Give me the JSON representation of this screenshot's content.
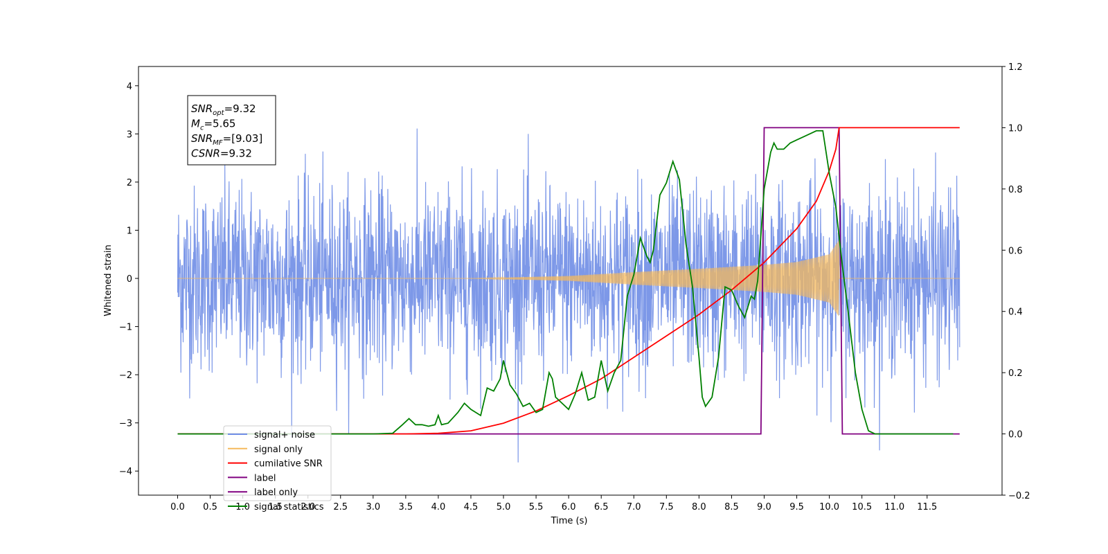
{
  "chart_data": {
    "type": "line",
    "xlabel": "Time (s)",
    "ylabel": "Whitened strain",
    "ylabel_right": "",
    "xlim": [
      -0.6,
      12.65
    ],
    "ylim_left": [
      -4.5,
      4.4
    ],
    "ylim_right": [
      -0.2,
      1.2
    ],
    "xticks": [
      "0.0",
      "0.5",
      "1.0",
      "1.5",
      "2.0",
      "2.5",
      "3.0",
      "3.5",
      "4.0",
      "4.5",
      "5.0",
      "5.5",
      "6.0",
      "6.5",
      "7.0",
      "7.5",
      "8.0",
      "8.5",
      "9.0",
      "9.5",
      "10.0",
      "10.5",
      "11.0",
      "11.5"
    ],
    "yticks_left": [
      "4",
      "3",
      "2",
      "1",
      "0",
      "−1",
      "−2",
      "−3",
      "−4"
    ],
    "yticks_right": [
      "1.2",
      "1.0",
      "0.8",
      "0.6",
      "0.4",
      "0.2",
      "0.0",
      "−0.2"
    ],
    "grid": false,
    "legend_position": "lower-left",
    "annotation": {
      "lines": [
        {
          "name": "SNR",
          "sub": "opt",
          "value": "=9.32"
        },
        {
          "name": "M",
          "sub": "c",
          "value": "=5.65"
        },
        {
          "name": "SNR",
          "sub": "MF",
          "value": "=[9.03]"
        },
        {
          "name": "CSNR",
          "sub": "",
          "value": "=9.32"
        }
      ]
    },
    "series": [
      {
        "name": "signal+ noise",
        "axis": "left",
        "color": "#6f8de6",
        "style": "dense noise, std ~0.95, spikes up to about 4.0 and down to about -4.1",
        "x_range": [
          0.0,
          12.0
        ]
      },
      {
        "name": "signal only",
        "axis": "left",
        "color": "#f5b95c",
        "style": "chirp, amplitude growing from 0 near t=4.5 to ~0.8 at t=10.15, zero afterwards",
        "amplitude_envelope": {
          "x": [
            4.5,
            6.0,
            7.0,
            8.0,
            9.0,
            9.5,
            10.0,
            10.15
          ],
          "y": [
            0.0,
            0.05,
            0.13,
            0.2,
            0.28,
            0.34,
            0.5,
            0.8
          ]
        }
      },
      {
        "name": "cumilative SNR",
        "axis": "right",
        "color": "#ff0000",
        "x": [
          0.0,
          3.5,
          4.0,
          4.5,
          5.0,
          5.5,
          6.0,
          6.5,
          7.0,
          7.5,
          8.0,
          8.5,
          9.0,
          9.5,
          9.8,
          10.0,
          10.1,
          10.15,
          10.2,
          12.0
        ],
        "values": [
          0.0,
          0.0,
          0.002,
          0.01,
          0.035,
          0.075,
          0.125,
          0.18,
          0.25,
          0.32,
          0.39,
          0.47,
          0.56,
          0.67,
          0.76,
          0.86,
          0.93,
          1.0,
          1.0,
          1.0
        ]
      },
      {
        "name": "label",
        "axis": "right",
        "color": "#800080",
        "x": [
          0.0,
          8.95,
          9.0,
          10.15,
          10.2,
          12.0
        ],
        "values": [
          0.0,
          0.0,
          1.0,
          1.0,
          0.0,
          0.0
        ]
      },
      {
        "name": "label only",
        "axis": "right",
        "color": "#800080",
        "x": [
          0.0,
          8.95,
          9.0,
          10.15,
          10.2,
          12.0
        ],
        "values": [
          0.0,
          0.0,
          1.0,
          1.0,
          0.0,
          0.0
        ]
      },
      {
        "name": "signal statistics",
        "axis": "right",
        "color": "#008000",
        "x": [
          0.0,
          1.0,
          2.0,
          3.0,
          3.3,
          3.45,
          3.55,
          3.65,
          3.75,
          3.85,
          3.95,
          4.0,
          4.05,
          4.15,
          4.3,
          4.4,
          4.5,
          4.65,
          4.75,
          4.85,
          4.95,
          5.0,
          5.1,
          5.2,
          5.3,
          5.4,
          5.5,
          5.6,
          5.7,
          5.75,
          5.8,
          5.9,
          6.0,
          6.1,
          6.2,
          6.3,
          6.4,
          6.5,
          6.6,
          6.7,
          6.8,
          6.9,
          7.0,
          7.1,
          7.2,
          7.25,
          7.3,
          7.4,
          7.5,
          7.6,
          7.7,
          7.8,
          7.9,
          8.0,
          8.05,
          8.1,
          8.2,
          8.3,
          8.4,
          8.5,
          8.6,
          8.7,
          8.8,
          8.85,
          8.9,
          9.0,
          9.1,
          9.15,
          9.2,
          9.3,
          9.4,
          9.5,
          9.6,
          9.7,
          9.8,
          9.9,
          10.0,
          10.1,
          10.2,
          10.3,
          10.4,
          10.5,
          10.6,
          10.7,
          11.0,
          11.9
        ],
        "values": [
          0.0,
          0.0,
          0.0,
          0.0,
          0.002,
          0.03,
          0.05,
          0.03,
          0.03,
          0.025,
          0.03,
          0.06,
          0.03,
          0.035,
          0.07,
          0.1,
          0.08,
          0.06,
          0.15,
          0.14,
          0.18,
          0.24,
          0.16,
          0.13,
          0.09,
          0.1,
          0.07,
          0.08,
          0.2,
          0.18,
          0.12,
          0.1,
          0.08,
          0.13,
          0.2,
          0.11,
          0.12,
          0.24,
          0.14,
          0.2,
          0.24,
          0.45,
          0.52,
          0.64,
          0.58,
          0.56,
          0.6,
          0.78,
          0.82,
          0.89,
          0.83,
          0.62,
          0.48,
          0.25,
          0.12,
          0.09,
          0.12,
          0.25,
          0.48,
          0.47,
          0.42,
          0.38,
          0.45,
          0.44,
          0.5,
          0.8,
          0.92,
          0.95,
          0.93,
          0.93,
          0.95,
          0.96,
          0.97,
          0.98,
          0.99,
          0.99,
          0.85,
          0.74,
          0.55,
          0.38,
          0.2,
          0.08,
          0.01,
          0.0,
          0.0,
          0.0
        ]
      }
    ],
    "legend": [
      {
        "label": "signal+ noise",
        "color": "#6f8de6"
      },
      {
        "label": "signal only",
        "color": "#f5b95c"
      },
      {
        "label": "cumilative SNR",
        "color": "#ff0000"
      },
      {
        "label": "label",
        "color": "#800080"
      },
      {
        "label": "label only",
        "color": "#800080"
      },
      {
        "label": "signal statistics",
        "color": "#008000"
      }
    ]
  }
}
